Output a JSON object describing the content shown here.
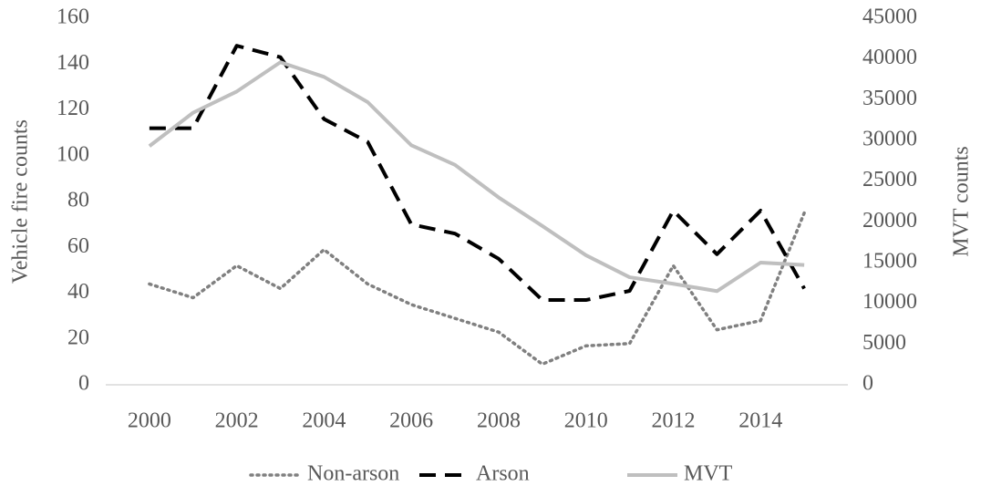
{
  "chart_data": {
    "type": "line",
    "y_label": "Vehicle fire counts",
    "y2_label": "MVT counts",
    "x": [
      2000,
      2001,
      2002,
      2003,
      2004,
      2005,
      2006,
      2007,
      2008,
      2009,
      2010,
      2011,
      2012,
      2013,
      2014,
      2015
    ],
    "xlim": [
      1999,
      2016
    ],
    "xticks": [
      2000,
      2002,
      2004,
      2006,
      2008,
      2010,
      2012,
      2014
    ],
    "ylim": [
      0,
      160
    ],
    "yticks": [
      0,
      20,
      40,
      60,
      80,
      100,
      120,
      140,
      160
    ],
    "y2lim": [
      0,
      45000
    ],
    "y2ticks": [
      0,
      5000,
      10000,
      15000,
      20000,
      25000,
      30000,
      35000,
      40000,
      45000
    ],
    "legend": "bottom",
    "series": [
      {
        "name": "Non-arson",
        "color": "#808080",
        "dash": "dotted",
        "values": [
          44,
          38,
          52,
          42,
          59,
          44,
          35,
          29,
          23,
          9,
          17,
          18,
          52,
          24,
          28,
          75
        ]
      },
      {
        "name": "Arson",
        "color": "#000000",
        "dash": "dashed",
        "values": [
          112,
          112,
          148,
          143,
          116,
          106,
          70,
          66,
          55,
          37,
          37,
          41,
          76,
          57,
          76,
          42
        ]
      },
      {
        "name": "MVT",
        "color": "#bfbfbf",
        "dash": "solid",
        "axis": "y2",
        "values": [
          29300,
          33400,
          36000,
          39600,
          37800,
          34700,
          29400,
          27000,
          23000,
          19500,
          15900,
          13200,
          12400,
          11500,
          15000,
          14700
        ]
      }
    ]
  }
}
